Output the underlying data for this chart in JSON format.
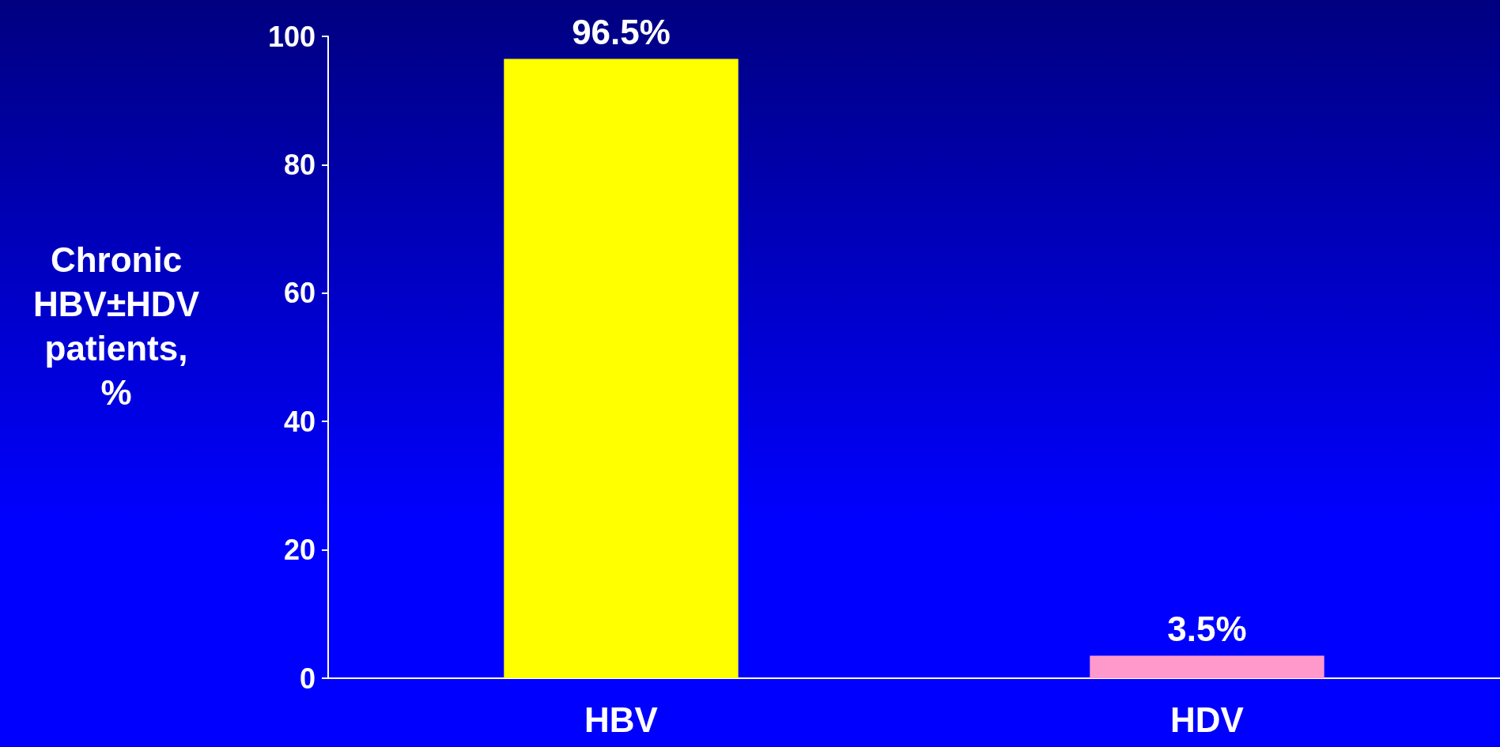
{
  "chart_data": {
    "type": "bar",
    "ylabel": "Chronic HBV±HDV patients, %",
    "categories": [
      "HBV",
      "HDV"
    ],
    "values": [
      96.5,
      3.5
    ],
    "colors": [
      "#ffff00",
      "#ff99cc"
    ],
    "value_labels": [
      "96.5%",
      "3.5%"
    ],
    "ylim": [
      0,
      100
    ],
    "yticks": [
      0,
      20,
      40,
      60,
      80,
      100
    ],
    "grid": false
  }
}
